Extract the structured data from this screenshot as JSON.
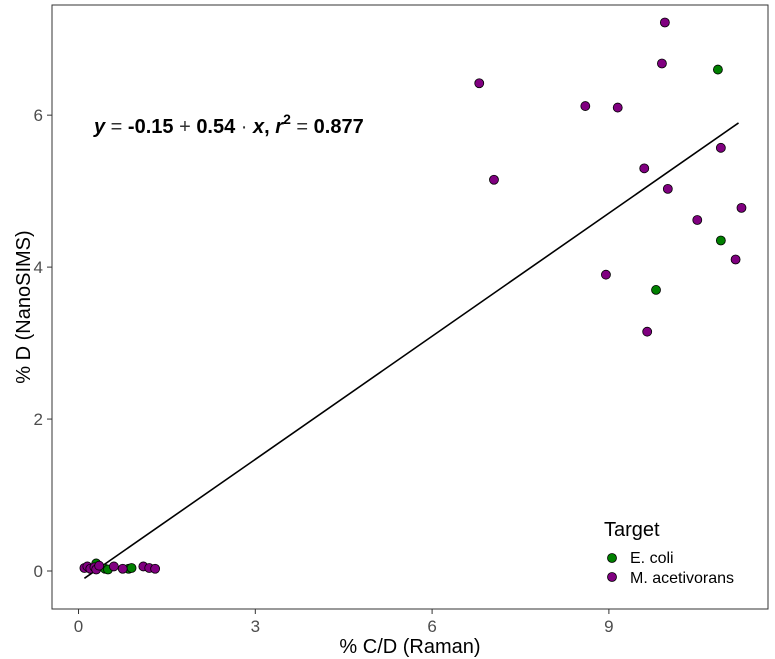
{
  "chart_data": {
    "type": "scatter",
    "xlabel": "% C/D (Raman)",
    "ylabel": "% D (NanoSIMS)",
    "xlim": [
      -0.45,
      11.7
    ],
    "ylim": [
      -0.5,
      7.45
    ],
    "x_ticks": [
      0,
      3,
      6,
      9
    ],
    "x_tick_labels": [
      "0",
      "3",
      "6",
      "9"
    ],
    "y_ticks": [
      0,
      2,
      4,
      6
    ],
    "y_tick_labels": [
      "0",
      "2",
      "4",
      "6"
    ],
    "grid": false,
    "legend": {
      "title": "Target",
      "placement": "bottom-right",
      "entries": [
        {
          "label": "E. coli",
          "color": "#008000"
        },
        {
          "label": "M. acetivorans",
          "color": "#800080"
        }
      ]
    },
    "series": [
      {
        "name": "E. coli",
        "color": "#008000",
        "points": [
          [
            0.3,
            0.1
          ],
          [
            0.45,
            0.03
          ],
          [
            0.5,
            0.02
          ],
          [
            0.85,
            0.03
          ],
          [
            0.9,
            0.04
          ],
          [
            9.8,
            3.7
          ],
          [
            10.9,
            4.35
          ],
          [
            10.85,
            6.6
          ]
        ]
      },
      {
        "name": "M. acetivorans",
        "color": "#800080",
        "points": [
          [
            0.1,
            0.04
          ],
          [
            0.15,
            0.06
          ],
          [
            0.2,
            0.03
          ],
          [
            0.27,
            0.05
          ],
          [
            0.3,
            0.02
          ],
          [
            0.35,
            0.07
          ],
          [
            0.6,
            0.06
          ],
          [
            0.75,
            0.03
          ],
          [
            1.1,
            0.06
          ],
          [
            1.2,
            0.04
          ],
          [
            1.3,
            0.03
          ],
          [
            6.8,
            6.42
          ],
          [
            7.05,
            5.15
          ],
          [
            8.6,
            6.12
          ],
          [
            9.15,
            6.1
          ],
          [
            8.95,
            3.9
          ],
          [
            9.6,
            5.3
          ],
          [
            9.65,
            3.15
          ],
          [
            9.9,
            6.68
          ],
          [
            9.95,
            7.22
          ],
          [
            10.0,
            5.03
          ],
          [
            10.5,
            4.62
          ],
          [
            10.9,
            5.57
          ],
          [
            11.15,
            4.1
          ],
          [
            11.25,
            4.78
          ]
        ]
      }
    ],
    "regression": {
      "intercept": -0.15,
      "slope": 0.54,
      "x_range": [
        0.1,
        11.2
      ],
      "equation_text": {
        "y": "y",
        "eq1": " = ",
        "intercept": "-0.15",
        "plus": " + ",
        "slope": "0.54",
        "dot": " · ",
        "x": "x",
        "comma": ",  ",
        "r": "r",
        "r_sup": "2",
        "eq2": " = ",
        "r2": "0.877"
      }
    }
  }
}
